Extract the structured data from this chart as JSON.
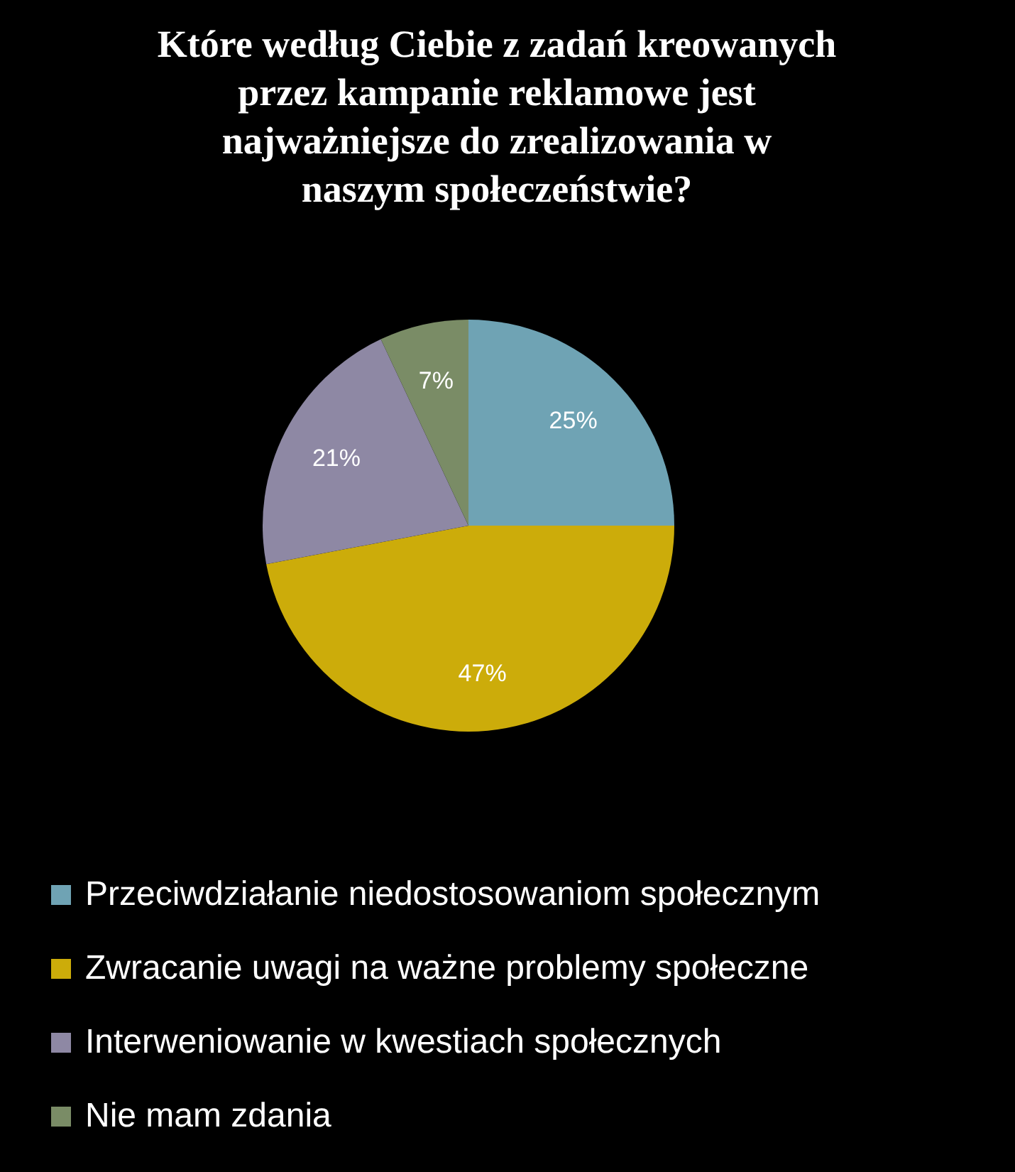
{
  "chart_data": {
    "type": "pie",
    "title": "Które według Ciebie z zadań kreowanych przez kampanie reklamowe jest najważniejsze do zrealizowania w naszym społeczeństwie?",
    "categories": [
      "Przeciwdziałanie niedostosowaniom społecznym",
      "Zwracanie uwagi na ważne problemy społeczne",
      "Interweniowanie w kwestiach społecznych",
      "Nie mam zdania"
    ],
    "values": [
      25,
      47,
      21,
      7
    ],
    "colors": [
      "#6fa3b4",
      "#ccac0a",
      "#8e88a4",
      "#7a8c66"
    ],
    "value_labels": [
      "25%",
      "47%",
      "21%",
      "7%"
    ],
    "legend": "bottom"
  }
}
